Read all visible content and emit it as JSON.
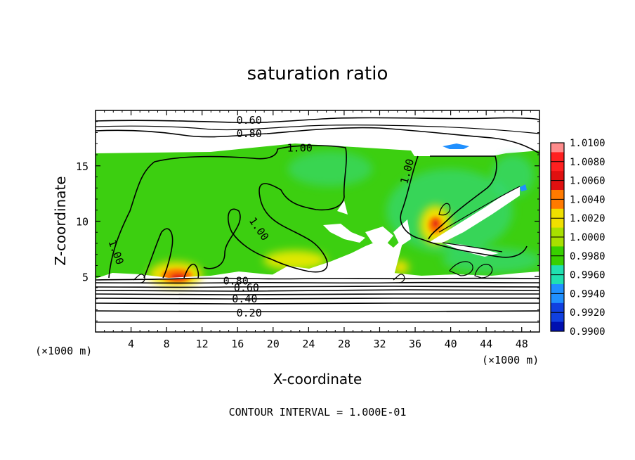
{
  "chart_data": {
    "type": "heatmap",
    "title": "saturation ratio",
    "xlabel": "X-coordinate",
    "ylabel": "Z-coordinate",
    "x_units": "(×1000 m)",
    "y_units": "(×1000 m)",
    "xlim": [
      0,
      50
    ],
    "ylim": [
      0,
      20
    ],
    "x_ticks": [
      4,
      8,
      12,
      16,
      20,
      24,
      28,
      32,
      36,
      40,
      44,
      48
    ],
    "y_ticks": [
      5,
      10,
      15
    ],
    "colorbar": {
      "levels": [
        "1.0100",
        "1.0080",
        "1.0060",
        "1.0040",
        "1.0020",
        "1.0000",
        "0.9980",
        "0.9960",
        "0.9940",
        "0.9920",
        "0.9900"
      ],
      "colors": [
        "#ff8c8c",
        "#ff2020",
        "#e01010",
        "#ff7a00",
        "#f0e000",
        "#a8e000",
        "#38d000",
        "#20e0b0",
        "#2090ff",
        "#1040e0",
        "#0010b0",
        "#7000a0"
      ]
    },
    "contour_labels": [
      {
        "text": "0.60",
        "x": 17.3,
        "z": 19.1
      },
      {
        "text": "0.80",
        "x": 17.3,
        "z": 17.9
      },
      {
        "text": "1.00",
        "x": 23.0,
        "z": 16.6
      },
      {
        "text": "1.00",
        "x": 35.1,
        "z": 14.5
      },
      {
        "text": "1.00",
        "x": 18.4,
        "z": 9.3
      },
      {
        "text": "1.00",
        "x": 2.3,
        "z": 7.2
      },
      {
        "text": "0.80",
        "x": 15.8,
        "z": 4.6
      },
      {
        "text": "0.60",
        "x": 17.0,
        "z": 4.0
      },
      {
        "text": "0.40",
        "x": 16.8,
        "z": 3.0
      },
      {
        "text": "0.20",
        "x": 17.3,
        "z": 1.7
      }
    ],
    "grid": false
  },
  "footer": {
    "contour_interval": "CONTOUR INTERVAL = 1.000E-01"
  },
  "colors": {
    "background": "#ffffff",
    "main_field": "#38d000",
    "dry_region": "#ffffff"
  }
}
